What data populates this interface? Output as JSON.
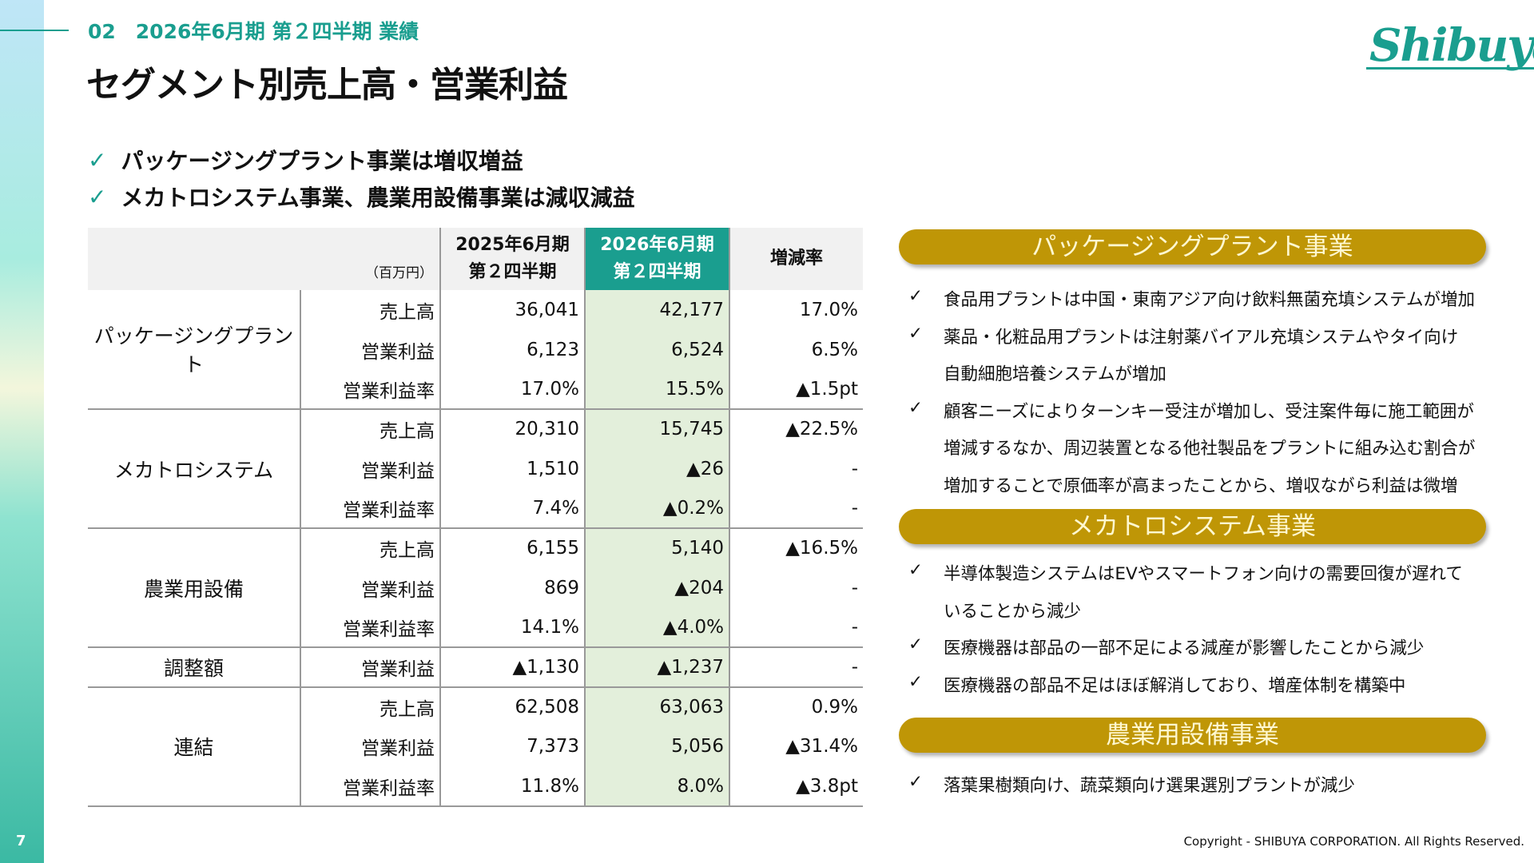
{
  "section_label": "02　2026年6月期 第２四半期 業績",
  "title": "セグメント別売上高・営業利益",
  "logo_text": "Shibuya",
  "lead_points": [
    "パッケージングプラント事業は増収増益",
    "メカトロシステム事業、農業用設備事業は減収減益"
  ],
  "table": {
    "unit": "（百万円）",
    "headers": {
      "prev": [
        "2025年6月期",
        "第２四半期"
      ],
      "cur": [
        "2026年6月期",
        "第２四半期"
      ],
      "rate": "増減率"
    },
    "groups": [
      {
        "segment": "パッケージングプラント",
        "rows": [
          [
            "売上高",
            "36,041",
            "42,177",
            "17.0%"
          ],
          [
            "営業利益",
            "6,123",
            "6,524",
            "6.5%"
          ],
          [
            "営業利益率",
            "17.0%",
            "15.5%",
            "▲1.5pt"
          ]
        ]
      },
      {
        "segment": "メカトロシステム",
        "rows": [
          [
            "売上高",
            "20,310",
            "15,745",
            "▲22.5%"
          ],
          [
            "営業利益",
            "1,510",
            "▲26",
            "-"
          ],
          [
            "営業利益率",
            "7.4%",
            "▲0.2%",
            "-"
          ]
        ]
      },
      {
        "segment": "農業用設備",
        "rows": [
          [
            "売上高",
            "6,155",
            "5,140",
            "▲16.5%"
          ],
          [
            "営業利益",
            "869",
            "▲204",
            "-"
          ],
          [
            "営業利益率",
            "14.1%",
            "▲4.0%",
            "-"
          ]
        ]
      },
      {
        "segment": "調整額",
        "rows": [
          [
            "営業利益",
            "▲1,130",
            "▲1,237",
            "-"
          ]
        ]
      },
      {
        "segment": "連結",
        "rows": [
          [
            "売上高",
            "62,508",
            "63,063",
            "0.9%"
          ],
          [
            "営業利益",
            "7,373",
            "5,056",
            "▲31.4%"
          ],
          [
            "営業利益率",
            "11.8%",
            "8.0%",
            "▲3.8pt"
          ]
        ]
      }
    ]
  },
  "panels": [
    {
      "title": "パッケージングプラント事業",
      "lines": [
        {
          "check": true,
          "text": "食品用プラントは中国・東南アジア向け飲料無菌充填システムが増加"
        },
        {
          "check": true,
          "text": "薬品・化粧品用プラントは注射薬バイアル充填システムやタイ向け"
        },
        {
          "check": false,
          "text": "自動細胞培養システムが増加"
        },
        {
          "check": true,
          "text": "顧客ニーズによりターンキー受注が増加し、受注案件毎に施工範囲が"
        },
        {
          "check": false,
          "text": "増減するなか、周辺装置となる他社製品をプラントに組み込む割合が"
        },
        {
          "check": false,
          "text": "増加することで原価率が高まったことから、増収ながら利益は微増"
        }
      ]
    },
    {
      "title": "メカトロシステム事業",
      "lines": [
        {
          "check": true,
          "text": "半導体製造システムはEVやスマートフォン向けの需要回復が遅れて"
        },
        {
          "check": false,
          "text": "いることから減少"
        },
        {
          "check": true,
          "text": "医療機器は部品の一部不足による減産が影響したことから減少"
        },
        {
          "check": true,
          "text": "医療機器の部品不足はほぼ解消しており、増産体制を構築中"
        }
      ]
    },
    {
      "title": "農業用設備事業",
      "lines": [
        {
          "check": true,
          "text": "落葉果樹類向け、蔬菜類向け選果選別プラントが減少"
        }
      ]
    }
  ],
  "check_glyph": "✓",
  "copyright": "Copyright - SHIBUYA CORPORATION.  All Rights Reserved.",
  "page_number": "7",
  "colors": {
    "accent": "#1a9e8f",
    "pill": "#bf9606",
    "highlight": "#e3efdb"
  }
}
